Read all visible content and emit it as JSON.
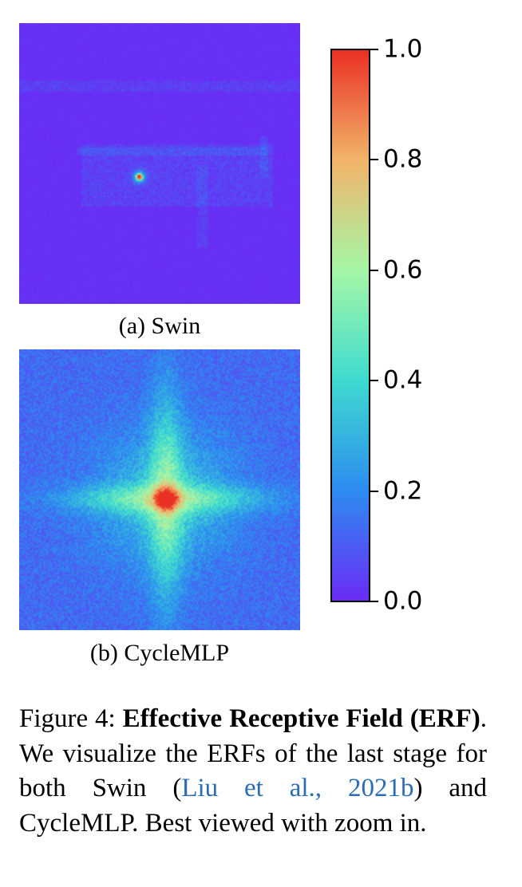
{
  "figure": {
    "subfigures": [
      {
        "label": "(a) Swin",
        "heatmap": "erf-swin",
        "description": "sparse, localized ERF with a single hot spot"
      },
      {
        "label": "(b) CycleMLP",
        "heatmap": "erf-cyclemlp",
        "description": "cross-shaped ERF with hot center"
      }
    ],
    "colorbar": {
      "colormap": "rainbow",
      "ticks": [
        "1.0",
        "0.8",
        "0.6",
        "0.4",
        "0.2",
        "0.0"
      ],
      "range": [
        0.0,
        1.0
      ],
      "colors": [
        "#6a2cf5",
        "#2d8cf0",
        "#3edbd0",
        "#a5f7a6",
        "#f1b46a",
        "#ea3023"
      ]
    },
    "caption": {
      "prefix": "Figure 4:",
      "bold": "Effective Receptive Field (ERF)",
      "text1": ". We visualize the ERFs of the last stage for both Swin (",
      "citation": "Liu et al., 2021b",
      "text2": ") and CycleMLP. Best viewed with zoom in."
    }
  }
}
